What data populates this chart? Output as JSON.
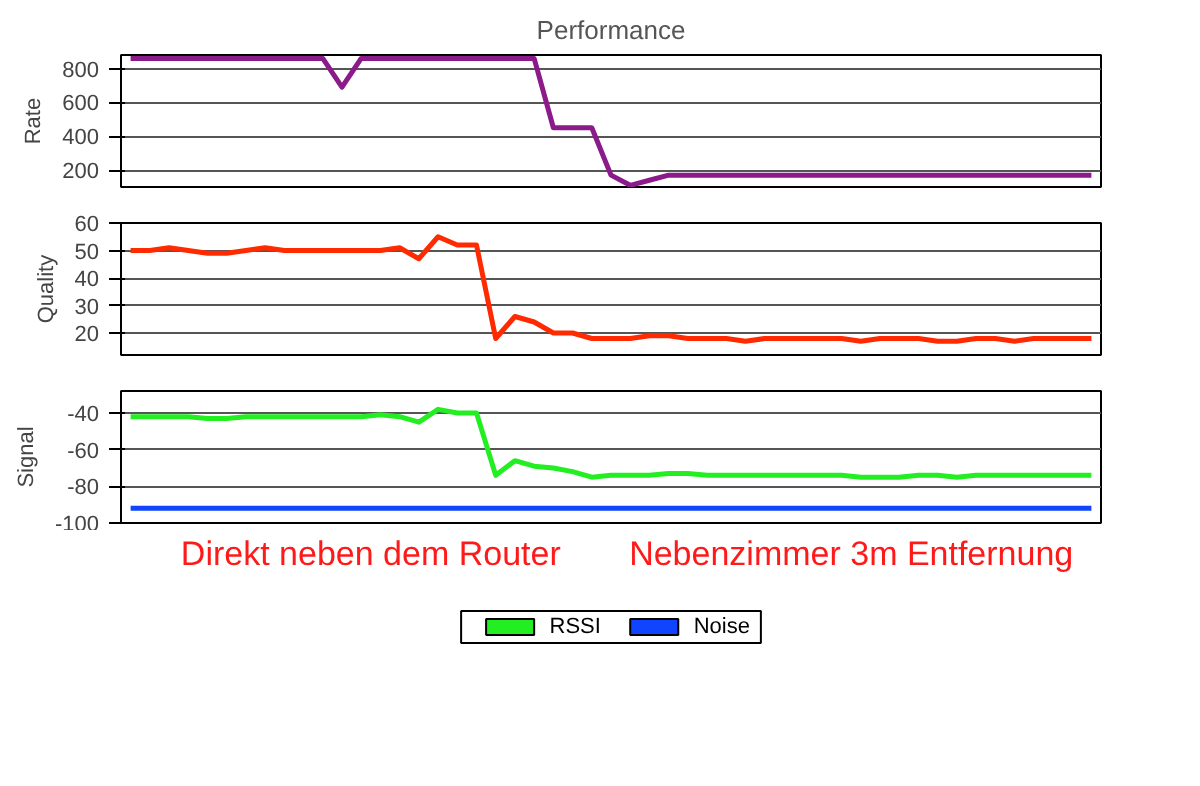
{
  "chart_data": [
    {
      "type": "line",
      "title": "Performance",
      "ylabel": "Rate",
      "categories": [
        null,
        null,
        null,
        null,
        null,
        null,
        null,
        null,
        null,
        null,
        null,
        null,
        null,
        null,
        null,
        null,
        null,
        null,
        null,
        null,
        null,
        null,
        null,
        null,
        null,
        null,
        null,
        null,
        null,
        null,
        null,
        null,
        null,
        null,
        null,
        null,
        null,
        null,
        null,
        null,
        null,
        null,
        null,
        null,
        null,
        null,
        null,
        null,
        null,
        null,
        null
      ],
      "series": [
        {
          "color": "#8b1a8b",
          "values": [
            860,
            860,
            860,
            860,
            860,
            860,
            860,
            860,
            860,
            860,
            860,
            690,
            860,
            860,
            860,
            860,
            860,
            860,
            860,
            860,
            860,
            860,
            450,
            450,
            450,
            170,
            110,
            140,
            170,
            170,
            170,
            170,
            170,
            170,
            170,
            170,
            170,
            170,
            170,
            170,
            170,
            170,
            170,
            170,
            170,
            170,
            170,
            170,
            170,
            170,
            170
          ]
        }
      ],
      "ylim": [
        100,
        880
      ],
      "yticks": [
        200,
        400,
        600,
        800
      ],
      "grid": "y",
      "tick_labels": "y",
      "legend": false
    },
    {
      "type": "line",
      "ylabel": "Quality",
      "categories": [
        null,
        null,
        null,
        null,
        null,
        null,
        null,
        null,
        null,
        null,
        null,
        null,
        null,
        null,
        null,
        null,
        null,
        null,
        null,
        null,
        null,
        null,
        null,
        null,
        null,
        null,
        null,
        null,
        null,
        null,
        null,
        null,
        null,
        null,
        null,
        null,
        null,
        null,
        null,
        null,
        null,
        null,
        null,
        null,
        null,
        null,
        null,
        null,
        null,
        null,
        null
      ],
      "series": [
        {
          "color": "#ff2a00",
          "values": [
            50,
            50,
            51,
            50,
            49,
            49,
            50,
            51,
            50,
            50,
            50,
            50,
            50,
            50,
            51,
            47,
            55,
            52,
            52,
            18,
            26,
            24,
            20,
            20,
            18,
            18,
            18,
            19,
            19,
            18,
            18,
            18,
            17,
            18,
            18,
            18,
            18,
            18,
            17,
            18,
            18,
            18,
            17,
            17,
            18,
            18,
            17,
            18,
            18,
            18,
            18
          ]
        }
      ],
      "ylim": [
        12,
        60
      ],
      "yticks": [
        20,
        30,
        40,
        50,
        60
      ],
      "grid": "y",
      "tick_labels": "y",
      "legend": false
    },
    {
      "type": "line",
      "ylabel": "Signal",
      "categories": [
        null,
        null,
        null,
        null,
        null,
        null,
        null,
        null,
        null,
        null,
        null,
        null,
        null,
        null,
        null,
        null,
        null,
        null,
        null,
        null,
        null,
        null,
        null,
        null,
        null,
        null,
        null,
        null,
        null,
        null,
        null,
        null,
        null,
        null,
        null,
        null,
        null,
        null,
        null,
        null,
        null,
        null,
        null,
        null,
        null,
        null,
        null,
        null,
        null,
        null,
        null
      ],
      "series": [
        {
          "name": "RSSI",
          "color": "#22ee22",
          "values": [
            -42,
            -42,
            -42,
            -42,
            -43,
            -43,
            -42,
            -42,
            -42,
            -42,
            -42,
            -42,
            -42,
            -41,
            -42,
            -45,
            -38,
            -40,
            -40,
            -74,
            -66,
            -69,
            -70,
            -72,
            -75,
            -74,
            -74,
            -74,
            -73,
            -73,
            -74,
            -74,
            -74,
            -74,
            -74,
            -74,
            -74,
            -74,
            -75,
            -75,
            -75,
            -74,
            -74,
            -75,
            -74,
            -74,
            -74,
            -74,
            -74,
            -74,
            -74
          ]
        },
        {
          "name": "Noise",
          "color": "#1144ff",
          "values": [
            -92,
            -92,
            -92,
            -92,
            -92,
            -92,
            -92,
            -92,
            -92,
            -92,
            -92,
            -92,
            -92,
            -92,
            -92,
            -92,
            -92,
            -92,
            -92,
            -92,
            -92,
            -92,
            -92,
            -92,
            -92,
            -92,
            -92,
            -92,
            -92,
            -92,
            -92,
            -92,
            -92,
            -92,
            -92,
            -92,
            -92,
            -92,
            -92,
            -92,
            -92,
            -92,
            -92,
            -92,
            -92,
            -92,
            -92,
            -92,
            -92,
            -92,
            -92
          ]
        }
      ],
      "ylim": [
        -100,
        -28
      ],
      "yticks": [
        -100,
        -80,
        -60,
        -40
      ],
      "grid": "y",
      "tick_labels": "y",
      "legend": "bottom",
      "annotations": [
        "Direkt neben dem Router",
        "Nebenzimmer 3m Entfernung"
      ]
    }
  ]
}
